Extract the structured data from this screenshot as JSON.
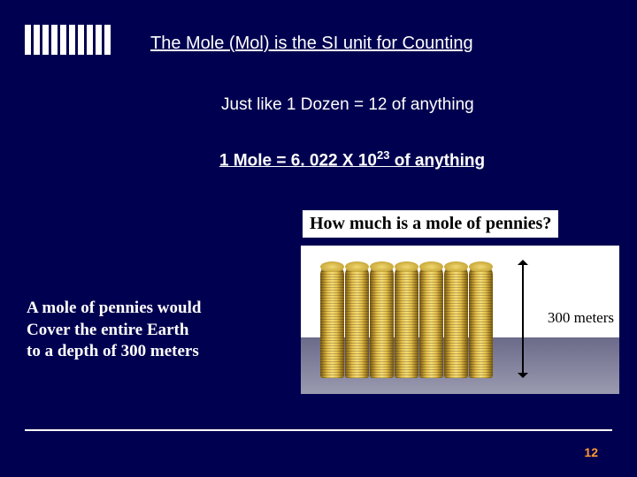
{
  "title": "The Mole (Mol) is the SI unit for Counting",
  "line1": "Just like 1 Dozen = 12 of anything",
  "line2_pre": "1 Mole = 6. 022 X 10",
  "line2_exp": "23",
  "line2_post": " of anything",
  "question": "How much is a mole of pennies?",
  "answer_l1": "A mole of pennies would",
  "answer_l2": "Cover the entire Earth",
  "answer_l3": "to a depth of 300 meters",
  "dim_label": "300 meters",
  "page_number": "12",
  "style": {
    "slide_bg": "#000050",
    "text_color": "#ffffff",
    "accent_color": "#ff9933",
    "decor_bar_count": 10,
    "penny_stack_count": 7,
    "penny_stack_colors": [
      "#7a5a10",
      "#e6c04a",
      "#f5dd7a"
    ],
    "illustration_bg_top": "#ffffff",
    "illustration_bg_bottom": "#6b6b8a",
    "dim_line_color": "#000000",
    "question_bg": "#ffffff",
    "question_color": "#000000",
    "title_fontsize": 20,
    "body_fontsize": 19,
    "comic_fontsize": 19
  }
}
